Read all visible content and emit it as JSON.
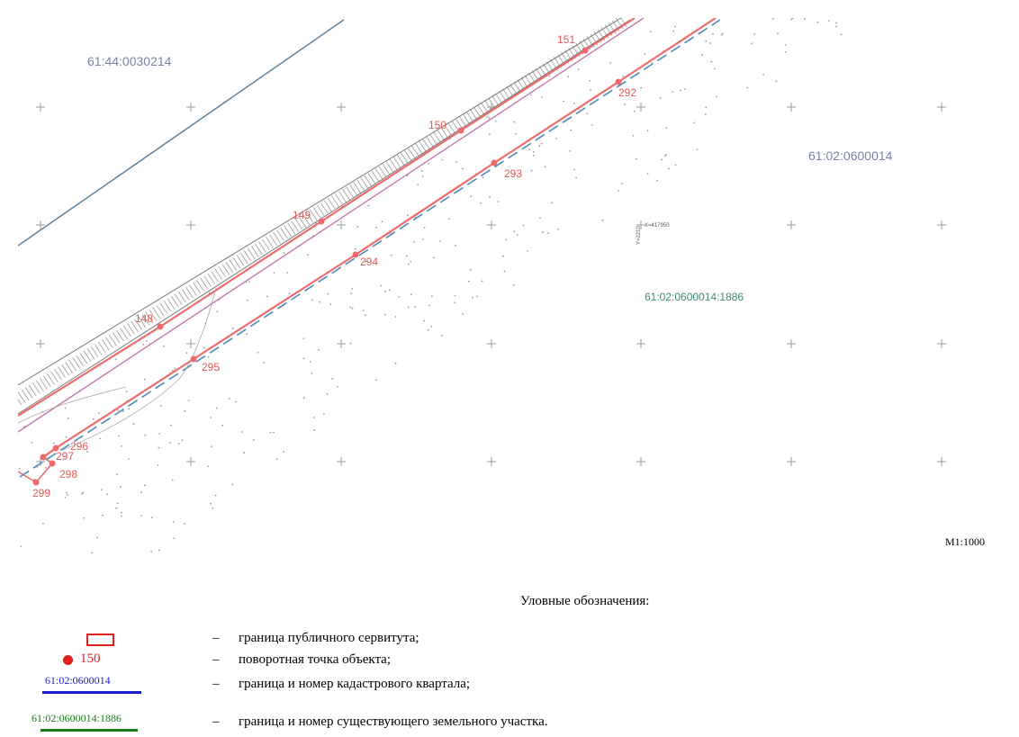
{
  "map": {
    "quarter_labels": [
      "61:44:0030214",
      "61:02:0600014"
    ],
    "parcel_label": "61:02:0600014:1886",
    "points": [
      "151",
      "150",
      "149",
      "148",
      "292",
      "293",
      "294",
      "295",
      "296",
      "297",
      "298",
      "299"
    ],
    "coordinate_labels": [
      "X=417950",
      "Y=2210"
    ],
    "scale": "M1:1000",
    "colors": {
      "servitude": "#e02020",
      "servitude_map": "#ef6b6b",
      "quarter_line": "#1b1bd0",
      "parcel_line": "#1a7a1a",
      "old_boundary": "#5f7f9a",
      "dash_line": "#4d8ab8",
      "purple_line": "#c07ab0",
      "road_hatch": "#8a8a8a"
    }
  },
  "legend": {
    "title": "Уловные обозначения:",
    "items": [
      {
        "symbol": "red-rectangle",
        "text": "граница публичного сервитута;"
      },
      {
        "symbol": "red-dot",
        "symbol_label": "150",
        "text": "поворотная точка объекта;"
      },
      {
        "symbol": "blue-line",
        "symbol_label": "61:02:0600014",
        "text": "граница и номер кадастрового квартала;"
      },
      {
        "symbol": "green-line",
        "symbol_label": "61:02:0600014:1886",
        "text": "граница и номер существующего земельного участка."
      }
    ],
    "dash": "–"
  }
}
